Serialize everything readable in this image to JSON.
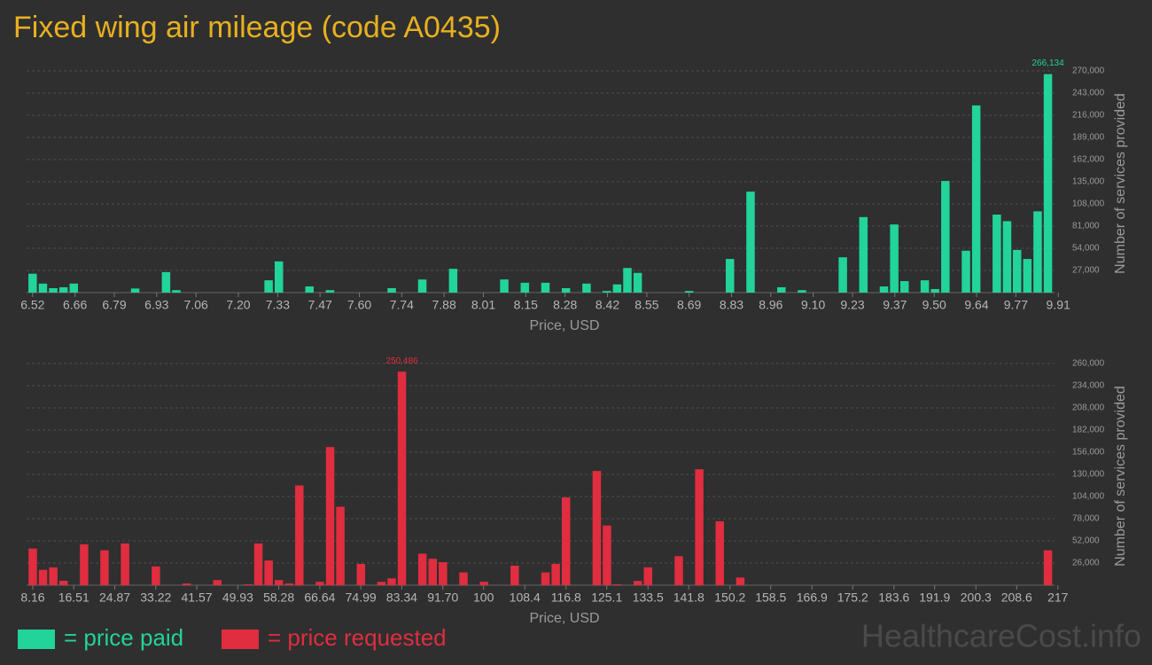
{
  "title": "Fixed wing air mileage (code A0435)",
  "watermark": "HealthcareCost.info",
  "chart_data": [
    {
      "type": "bar",
      "name": "= price paid",
      "color": "#22d39a",
      "xlabel": "Price, USD",
      "ylabel": "Number of services provided",
      "grid": true,
      "xlim": [
        6.5,
        9.93
      ],
      "ylim": [
        0,
        270000
      ],
      "xticks": [
        6.52,
        6.66,
        6.79,
        6.93,
        7.06,
        {
          "value": 7.2,
          "label": "7.20"
        },
        7.33,
        7.47,
        {
          "value": 7.6,
          "label": "7.60"
        },
        7.74,
        7.88,
        8.01,
        8.15,
        8.28,
        8.42,
        8.55,
        8.69,
        8.83,
        8.96,
        {
          "value": 9.1,
          "label": "9.10"
        },
        9.23,
        9.37,
        {
          "value": 9.5,
          "label": "9.50"
        },
        9.64,
        9.77,
        9.91
      ],
      "yticks": [
        {
          "value": 27000,
          "label": "27,000"
        },
        {
          "value": 54000,
          "label": "54,000"
        },
        {
          "value": 81000,
          "label": "81,000"
        },
        {
          "value": 108000,
          "label": "108,000"
        },
        {
          "value": 135000,
          "label": "135,000"
        },
        {
          "value": 162000,
          "label": "162,000"
        },
        {
          "value": 189000,
          "label": "189,000"
        },
        {
          "value": 216000,
          "label": "216,000"
        },
        {
          "value": 243000,
          "label": "243,000"
        },
        {
          "value": 270000,
          "label": "270,000"
        }
      ],
      "x": [
        6.52,
        6.554,
        6.588,
        6.622,
        6.656,
        6.859,
        6.961,
        6.995,
        7.3,
        7.334,
        7.435,
        7.503,
        7.707,
        7.808,
        7.91,
        8.079,
        8.147,
        8.215,
        8.283,
        8.351,
        8.418,
        8.452,
        8.486,
        8.52,
        8.69,
        8.825,
        8.893,
        8.995,
        9.063,
        9.198,
        9.266,
        9.334,
        9.368,
        9.402,
        9.469,
        9.503,
        9.537,
        9.605,
        9.639,
        9.707,
        9.741,
        9.774,
        9.808,
        9.842,
        9.876
      ],
      "values": [
        23000,
        11000,
        5400,
        6500,
        11000,
        5000,
        25000,
        3000,
        15000,
        38000,
        7500,
        3000,
        5400,
        16000,
        29000,
        16000,
        12000,
        12000,
        5400,
        11000,
        2000,
        10000,
        30000,
        24000,
        2000,
        41000,
        123000,
        6500,
        3000,
        43000,
        92000,
        7500,
        83000,
        14000,
        15000,
        4300,
        136000,
        51000,
        228000,
        95000,
        87000,
        52000,
        41000,
        99000,
        266134
      ],
      "value_labels": [
        null,
        null,
        null,
        null,
        null,
        null,
        null,
        null,
        null,
        null,
        null,
        null,
        null,
        null,
        null,
        null,
        null,
        null,
        null,
        null,
        null,
        null,
        null,
        null,
        null,
        null,
        null,
        null,
        null,
        null,
        null,
        null,
        null,
        null,
        null,
        null,
        null,
        null,
        null,
        null,
        null,
        null,
        null,
        null,
        "266,134"
      ]
    },
    {
      "type": "bar",
      "name": "= price requested",
      "color": "#e02d3f",
      "xlabel": "Price, USD",
      "ylabel": "Number of services provided",
      "grid": true,
      "xlim": [
        6.9,
        218.3
      ],
      "ylim": [
        0,
        260000
      ],
      "xticks": [
        8.16,
        16.51,
        24.87,
        33.22,
        41.57,
        49.93,
        58.28,
        66.64,
        74.99,
        83.34,
        {
          "value": 91.7,
          "label": "91.70"
        },
        100,
        108.4,
        116.8,
        125.1,
        133.5,
        141.8,
        150.2,
        158.5,
        166.9,
        175.2,
        183.6,
        191.9,
        200.3,
        208.6,
        217
      ],
      "yticks": [
        {
          "value": 26000,
          "label": "26,000"
        },
        {
          "value": 52000,
          "label": "52,000"
        },
        {
          "value": 78000,
          "label": "78,000"
        },
        {
          "value": 104000,
          "label": "104,000"
        },
        {
          "value": 130000,
          "label": "130,000"
        },
        {
          "value": 156000,
          "label": "156,000"
        },
        {
          "value": 182000,
          "label": "182,000"
        },
        {
          "value": 208000,
          "label": "208,000"
        },
        {
          "value": 234000,
          "label": "234,000"
        },
        {
          "value": 260000,
          "label": "260,000"
        }
      ],
      "x": [
        8.16,
        10.25,
        12.34,
        14.43,
        18.61,
        22.78,
        26.96,
        33.23,
        39.5,
        45.76,
        52.03,
        54.12,
        56.21,
        58.3,
        60.39,
        62.47,
        66.65,
        68.74,
        70.83,
        75.01,
        79.19,
        81.28,
        83.36,
        87.54,
        89.63,
        91.72,
        95.9,
        100.08,
        106.34,
        112.61,
        114.7,
        116.79,
        123.06,
        125.14,
        127.23,
        131.41,
        133.5,
        139.77,
        143.94,
        148.12,
        152.3,
        214.97
      ],
      "values": [
        43000,
        18000,
        21000,
        5200,
        48000,
        41000,
        49000,
        22000,
        2000,
        6000,
        1000,
        49000,
        29000,
        6000,
        2000,
        117000,
        4000,
        162000,
        92000,
        25000,
        4000,
        8000,
        250486,
        37000,
        31000,
        27000,
        15000,
        4000,
        23000,
        15000,
        25000,
        103000,
        134000,
        70000,
        1000,
        5000,
        21000,
        34000,
        136000,
        75000,
        9000,
        41000
      ],
      "value_labels": [
        null,
        null,
        null,
        null,
        null,
        null,
        null,
        null,
        null,
        null,
        null,
        null,
        null,
        null,
        null,
        null,
        null,
        null,
        null,
        null,
        null,
        null,
        "250,486",
        null,
        null,
        null,
        null,
        null,
        null,
        null,
        null,
        null,
        null,
        null,
        null,
        null,
        null,
        null,
        null,
        null,
        null,
        null
      ]
    }
  ]
}
